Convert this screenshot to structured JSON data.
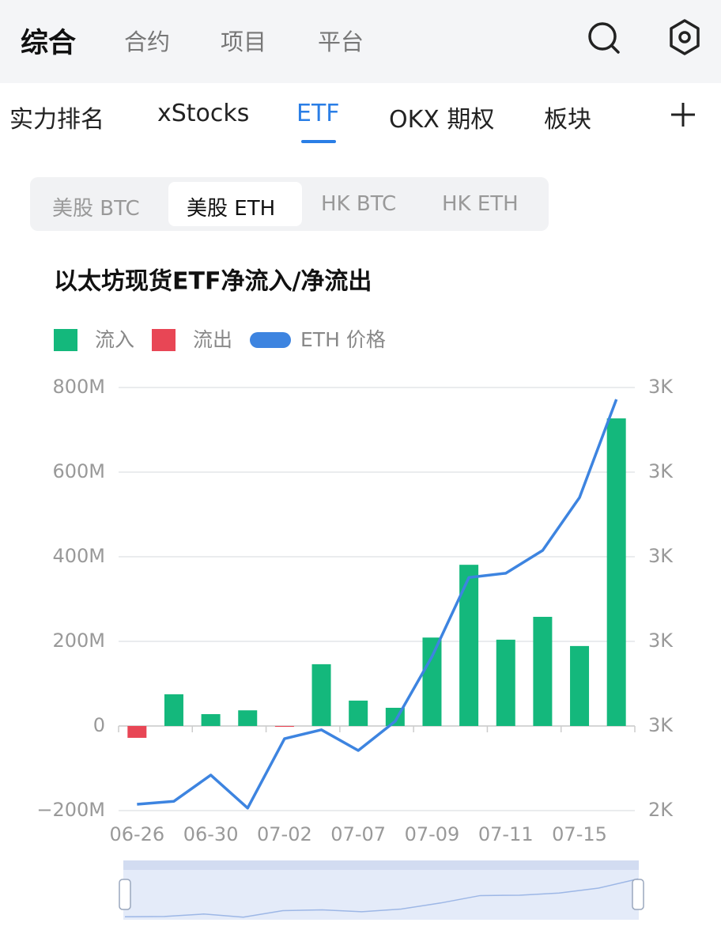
{
  "header": {
    "tabs": [
      "综合",
      "合约",
      "项目",
      "平台"
    ]
  },
  "subtabs": [
    "实力排名",
    "xStocks",
    "ETF",
    "OKX 期权",
    "板块"
  ],
  "segments": [
    "美股 BTC",
    "美股 ETH",
    "HK BTC",
    "HK ETH"
  ],
  "chart_data": {
    "type": "bar",
    "title": "以太坊现货ETF净流入/净流出",
    "categories": [
      "06-26",
      null,
      "06-30",
      null,
      "07-02",
      null,
      "07-07",
      null,
      "07-09",
      null,
      "07-11",
      null,
      "07-15",
      null
    ],
    "series": [
      {
        "name": "流入",
        "color": "#14b87c",
        "values": [
          null,
          75,
          28,
          37,
          null,
          146,
          60,
          43,
          209,
          381,
          204,
          258,
          189,
          727
        ]
      },
      {
        "name": "流出",
        "color": "#e84655",
        "values": [
          -28,
          null,
          null,
          null,
          -2,
          null,
          null,
          null,
          null,
          null,
          null,
          null,
          null,
          null
        ]
      },
      {
        "name": "ETH 价格",
        "type": "line",
        "axis": "y2",
        "color": "#3d84e0",
        "values": [
          2415,
          2422,
          2484,
          2406,
          2570,
          2591,
          2542,
          2611,
          2764,
          2951,
          2961,
          3015,
          3140,
          3372
        ]
      }
    ],
    "ylim": [
      -200,
      800
    ],
    "yticks": [
      {
        "value": -200,
        "label": "−200M"
      },
      0,
      {
        "value": 200,
        "label": "200M"
      },
      {
        "value": 400,
        "label": "400M"
      },
      {
        "value": 600,
        "label": "600M"
      },
      {
        "value": 800,
        "label": "800M"
      }
    ],
    "y2lim": [
      2400,
      3400
    ],
    "y2ticks": [
      {
        "value": 2400,
        "label": "2K"
      },
      {
        "value": 2600,
        "label": "3K"
      },
      {
        "value": 2800,
        "label": "3K"
      },
      {
        "value": 3000,
        "label": "3K"
      },
      {
        "value": 3200,
        "label": "3K"
      },
      {
        "value": 3400,
        "label": "3K"
      }
    ],
    "grid": true
  }
}
